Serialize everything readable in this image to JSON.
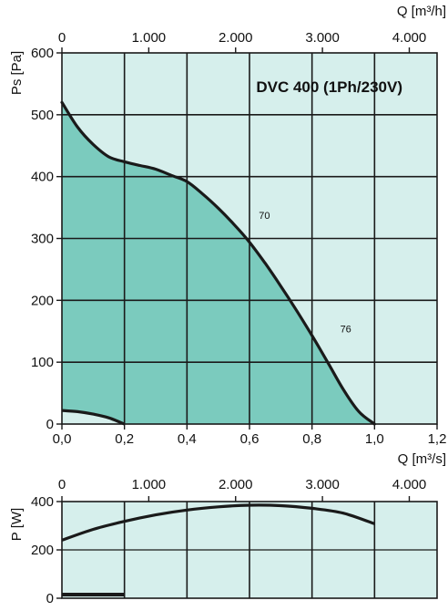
{
  "chart_data": [
    {
      "type": "area",
      "title": "DVC 400 (1Ph/230V)",
      "xlabel": "Q [m³/s]",
      "ylabel": "Ps [Pa]",
      "x2label": "Q [m³/h]",
      "xlim": [
        0,
        1.2
      ],
      "ylim": [
        0,
        600
      ],
      "x_ticks": [
        0,
        0.2,
        0.4,
        0.6,
        0.8,
        1.0,
        1.2
      ],
      "x_tick_labels": [
        "0,0",
        "0,2",
        "0,4",
        "0,6",
        "0,8",
        "1,0",
        "1,2"
      ],
      "y_ticks": [
        0,
        100,
        200,
        300,
        400,
        500,
        600
      ],
      "y_tick_labels": [
        "0",
        "100",
        "200",
        "300",
        "400",
        "500",
        "600"
      ],
      "x2_ticks": [
        0,
        1000,
        2000,
        3000,
        4000
      ],
      "x2_tick_labels": [
        "0",
        "1.000",
        "2.000",
        "3.000",
        "4.000"
      ],
      "grid": true,
      "series": [
        {
          "points": [
            [
              0.0,
              520
            ],
            [
              0.05,
              480
            ],
            [
              0.1,
              452
            ],
            [
              0.15,
              432
            ],
            [
              0.2,
              424
            ],
            [
              0.25,
              418
            ],
            [
              0.3,
              412
            ],
            [
              0.35,
              402
            ],
            [
              0.4,
              392
            ],
            [
              0.45,
              372
            ],
            [
              0.5,
              349
            ],
            [
              0.55,
              323
            ],
            [
              0.6,
              294
            ],
            [
              0.65,
              260
            ],
            [
              0.7,
              223
            ],
            [
              0.75,
              184
            ],
            [
              0.8,
              143
            ],
            [
              0.85,
              100
            ],
            [
              0.9,
              56
            ],
            [
              0.95,
              20
            ],
            [
              1.0,
              0
            ]
          ]
        },
        {
          "points": [
            [
              0.0,
              22
            ],
            [
              0.05,
              20
            ],
            [
              0.1,
              16
            ],
            [
              0.15,
              10
            ],
            [
              0.2,
              0
            ]
          ]
        }
      ],
      "annotations": [
        "70",
        "76"
      ],
      "colors": {
        "area": "#7bcbbe",
        "background": "#d6efec",
        "curve": "#1a1a1a",
        "grid": "#1a1a1a"
      }
    },
    {
      "type": "line",
      "xlabel": "",
      "ylabel": "P [W]",
      "x2label": "",
      "xlim": [
        0,
        1.2
      ],
      "ylim": [
        0,
        400
      ],
      "y_ticks": [
        0,
        200,
        400
      ],
      "y_tick_labels": [
        "0",
        "200",
        "400"
      ],
      "x2_ticks": [
        0,
        1000,
        2000,
        3000,
        4000
      ],
      "x2_tick_labels": [
        "0",
        "1.000",
        "2.000",
        "3.000",
        "4.000"
      ],
      "grid": true,
      "series": [
        {
          "points": [
            [
              0.0,
              240
            ],
            [
              0.1,
              285
            ],
            [
              0.2,
              318
            ],
            [
              0.3,
              345
            ],
            [
              0.4,
              365
            ],
            [
              0.5,
              378
            ],
            [
              0.6,
              385
            ],
            [
              0.7,
              383
            ],
            [
              0.8,
              372
            ],
            [
              0.9,
              352
            ],
            [
              1.0,
              308
            ]
          ]
        },
        {
          "points": [
            [
              0.0,
              15
            ],
            [
              0.2,
              15
            ]
          ]
        }
      ],
      "colors": {
        "background": "#d6efec",
        "curve": "#1a1a1a",
        "grid": "#1a1a1a"
      }
    }
  ]
}
